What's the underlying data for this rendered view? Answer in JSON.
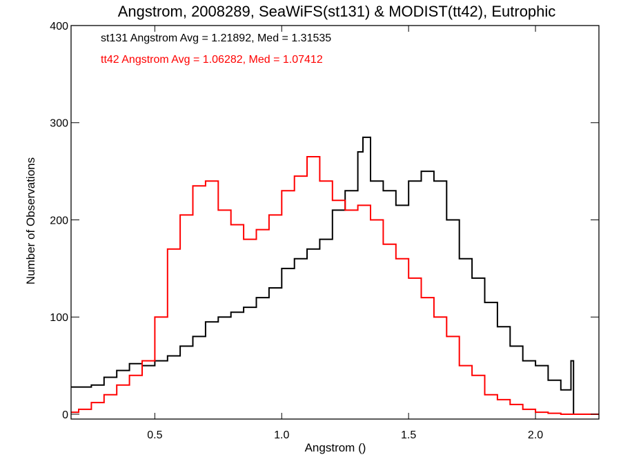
{
  "chart_data": {
    "type": "line",
    "step": true,
    "title": "Angstrom, 2008289, SeaWiFS(st131) & MODIST(tt42), Eutrophic",
    "xlabel": "Angstrom ()",
    "ylabel": "Number of Observations",
    "xlim": [
      0.17,
      2.25
    ],
    "ylim": [
      -5,
      400
    ],
    "xticks": [
      0.5,
      1.0,
      1.5,
      2.0
    ],
    "xtick_labels": [
      "0.5",
      "1.0",
      "1.5",
      "2.0"
    ],
    "yticks": [
      0,
      100,
      200,
      300,
      400
    ],
    "ytick_labels": [
      "0",
      "100",
      "200",
      "300",
      "400"
    ],
    "grid": false,
    "annotations": [
      {
        "text": "st131 Angstrom Avg = 1.21892, Med = 1.31535",
        "color": "#000000"
      },
      {
        "text": "tt42 Angstrom Avg = 1.06282, Med = 1.07412",
        "color": "#ff0000"
      }
    ],
    "series": [
      {
        "color": "#000000",
        "x": [
          0.17,
          0.2,
          0.25,
          0.3,
          0.35,
          0.4,
          0.45,
          0.5,
          0.55,
          0.6,
          0.65,
          0.7,
          0.75,
          0.8,
          0.85,
          0.9,
          0.95,
          1.0,
          1.05,
          1.1,
          1.15,
          1.2,
          1.25,
          1.3,
          1.32,
          1.35,
          1.4,
          1.45,
          1.5,
          1.55,
          1.6,
          1.65,
          1.7,
          1.75,
          1.8,
          1.85,
          1.9,
          1.95,
          2.0,
          2.05,
          2.1,
          2.14,
          2.15,
          2.16
        ],
        "y": [
          28,
          28,
          30,
          38,
          45,
          52,
          50,
          55,
          60,
          70,
          80,
          95,
          100,
          105,
          110,
          120,
          130,
          150,
          160,
          170,
          180,
          210,
          230,
          270,
          285,
          240,
          230,
          215,
          240,
          250,
          240,
          200,
          160,
          140,
          115,
          90,
          70,
          55,
          50,
          35,
          25,
          55,
          0,
          0
        ]
      },
      {
        "color": "#ff0000",
        "x": [
          0.17,
          0.2,
          0.25,
          0.3,
          0.35,
          0.4,
          0.45,
          0.5,
          0.55,
          0.6,
          0.65,
          0.7,
          0.75,
          0.8,
          0.85,
          0.9,
          0.95,
          1.0,
          1.05,
          1.1,
          1.15,
          1.2,
          1.25,
          1.3,
          1.35,
          1.4,
          1.45,
          1.5,
          1.55,
          1.6,
          1.65,
          1.7,
          1.75,
          1.8,
          1.85,
          1.9,
          1.95,
          2.0,
          2.05,
          2.1,
          2.15,
          2.2,
          2.25
        ],
        "y": [
          2,
          5,
          12,
          20,
          30,
          40,
          55,
          100,
          170,
          205,
          235,
          240,
          210,
          195,
          180,
          190,
          205,
          230,
          245,
          265,
          240,
          220,
          210,
          215,
          200,
          175,
          160,
          140,
          120,
          100,
          80,
          50,
          40,
          20,
          15,
          10,
          5,
          2,
          1,
          0,
          0,
          0,
          0
        ]
      }
    ]
  }
}
